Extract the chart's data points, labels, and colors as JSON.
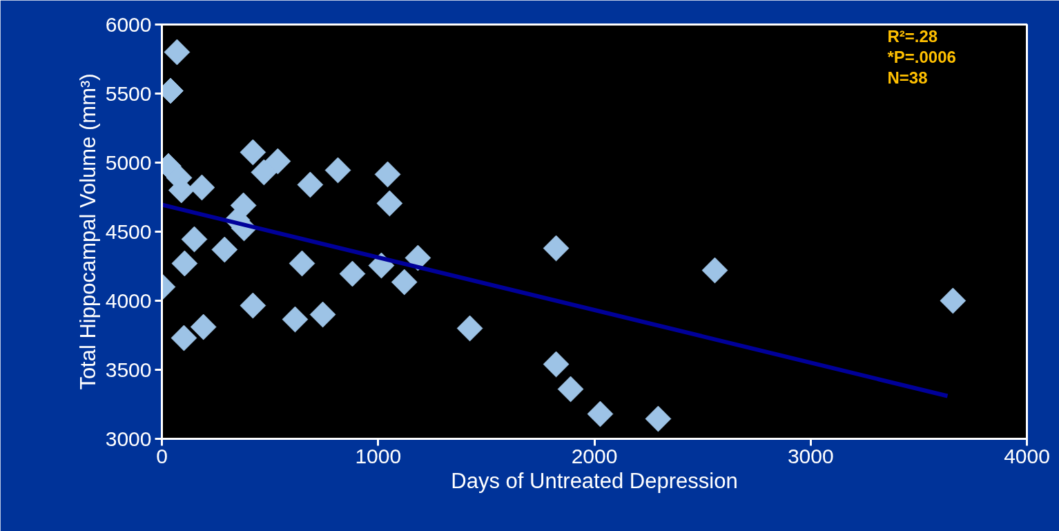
{
  "chart_data": {
    "type": "scatter",
    "xlabel": "Days of Untreated Depression",
    "ylabel": "Total Hippocampal Volume (mm³)",
    "xlim": [
      0,
      4000
    ],
    "xticks": [
      0,
      1000,
      2000,
      3000,
      4000
    ],
    "ylim": [
      3000,
      6000
    ],
    "yticks": [
      3000,
      3500,
      4000,
      4500,
      5000,
      5500,
      6000
    ],
    "grid": false,
    "marker": "diamond",
    "annotations": [
      "R²=.28",
      "*P=.0006",
      "N=38"
    ],
    "series": [
      {
        "color": "#9dc3e6",
        "x": [
          70,
          40,
          30,
          80,
          90,
          185,
          421,
          536,
          472,
          686,
          814,
          1044,
          1053,
          377,
          348,
          380,
          150,
          105,
          290,
          3,
          102,
          192,
          421,
          616,
          744,
          648,
          881,
          1015,
          1184,
          1121,
          1424,
          1823,
          1823,
          1890,
          2027,
          2295,
          2557,
          3658
        ],
        "values": [
          5800,
          5520,
          4975,
          4890,
          4800,
          4820,
          5075,
          5010,
          4930,
          4840,
          4945,
          4915,
          4705,
          4690,
          4585,
          4525,
          4445,
          4270,
          4370,
          4100,
          3730,
          3810,
          3965,
          3865,
          3900,
          4270,
          4195,
          4255,
          4310,
          4135,
          3800,
          4380,
          3540,
          3360,
          3180,
          3145,
          4220,
          4000
        ]
      },
      {
        "type": "line",
        "marker": "none",
        "color": "#000099",
        "x": [
          0,
          3633
        ],
        "values": [
          4695,
          3310
        ]
      }
    ]
  }
}
